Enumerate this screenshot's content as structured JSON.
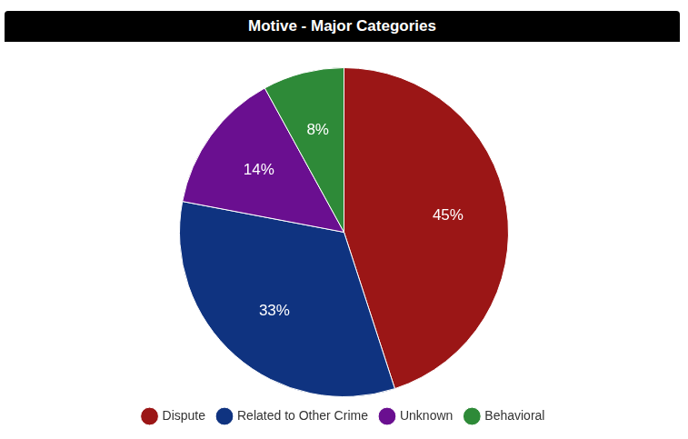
{
  "chart_data": {
    "type": "pie",
    "title": "Motive - Major Categories",
    "categories": [
      "Dispute",
      "Related to Other Crime",
      "Unknown",
      "Behavioral"
    ],
    "values": [
      45,
      33,
      14,
      8
    ],
    "value_labels": [
      "45%",
      "33%",
      "14%",
      "8%"
    ],
    "colors": [
      "#9b1616",
      "#0f3380",
      "#6a0f90",
      "#2e8a38"
    ],
    "data_labels": true,
    "legend": "bottom"
  }
}
